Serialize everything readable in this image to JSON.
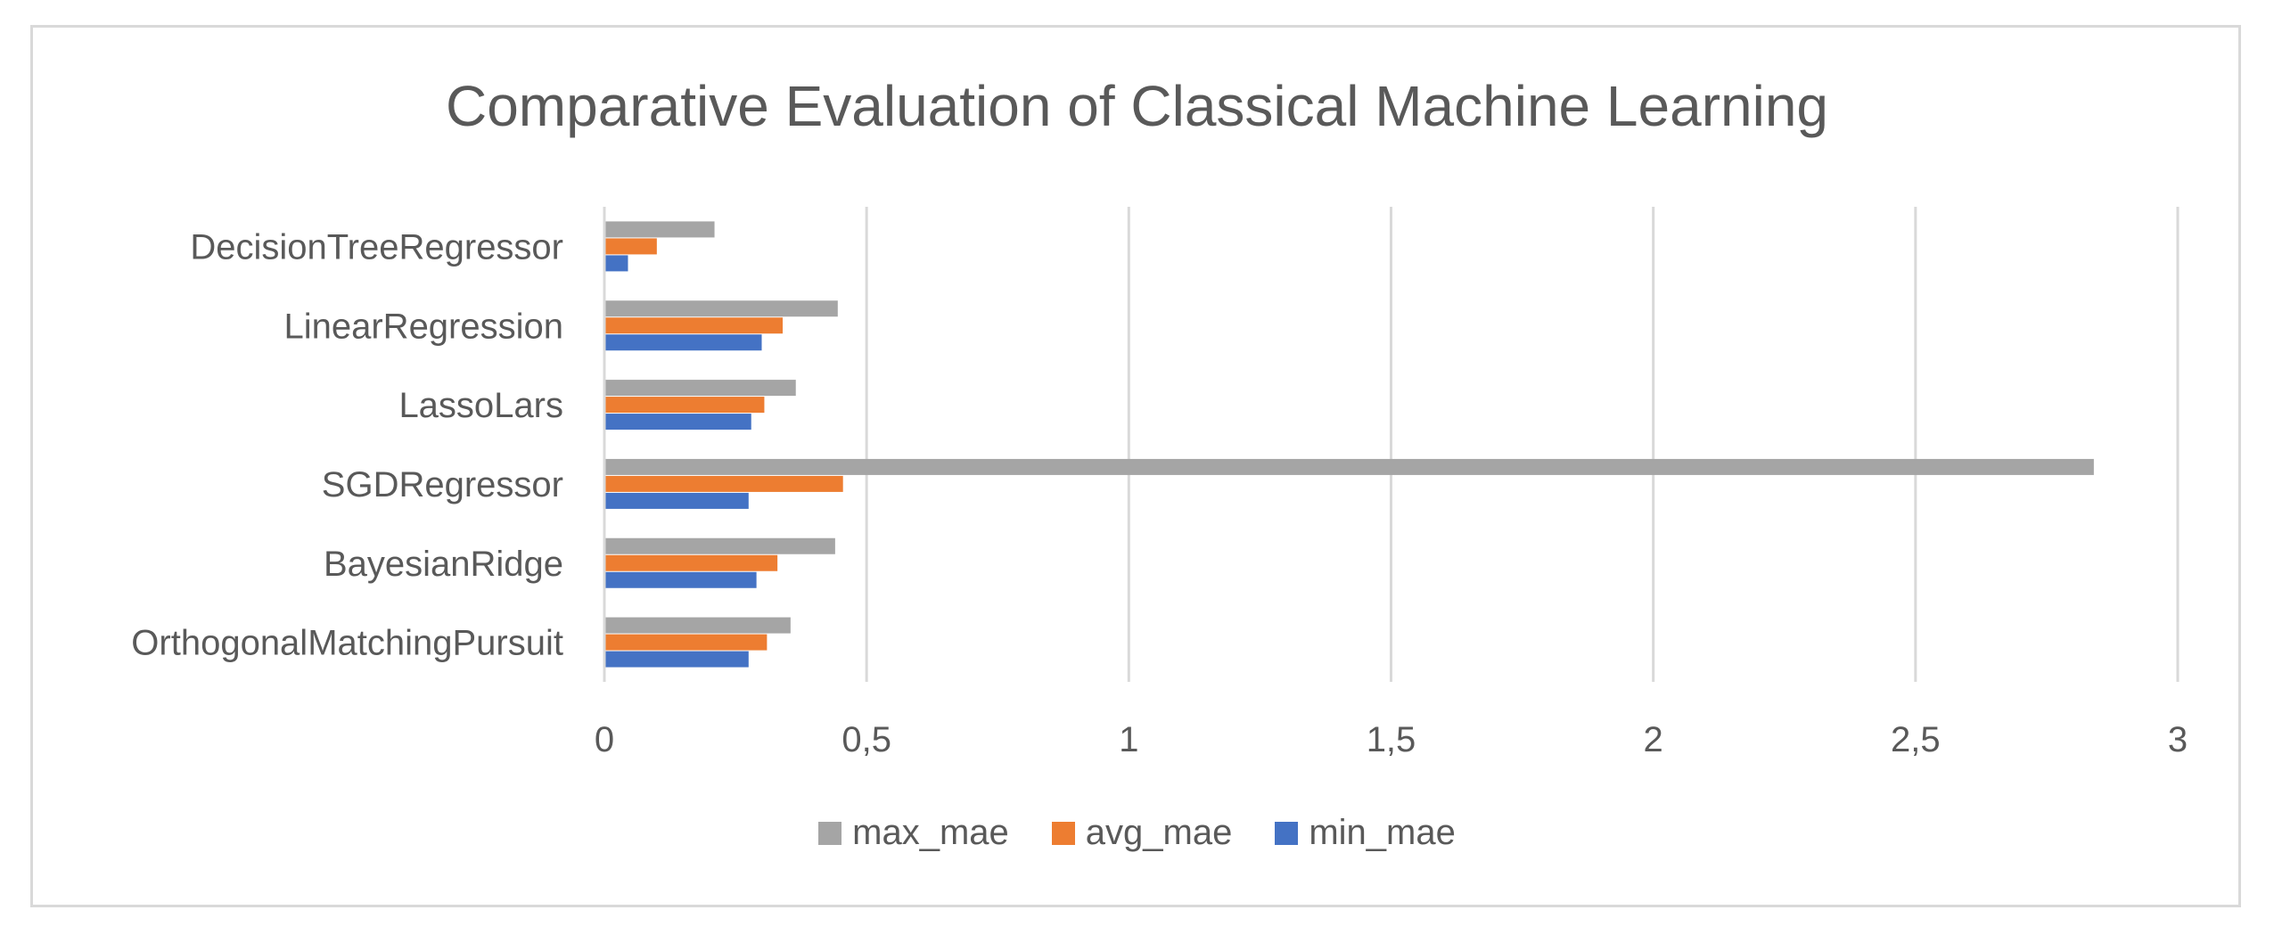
{
  "chart_data": {
    "type": "bar",
    "orientation": "horizontal",
    "title": "Comparative Evaluation of Classical Machine Learning",
    "categories": [
      "DecisionTreeRegressor",
      "LinearRegression",
      "LassoLars",
      "SGDRegressor",
      "BayesianRidge",
      "OrthogonalMatchingPursuit"
    ],
    "series": [
      {
        "name": "max_mae",
        "color": "#a5a5a5",
        "values": [
          0.21,
          0.445,
          0.365,
          2.84,
          0.44,
          0.355
        ]
      },
      {
        "name": "avg_mae",
        "color": "#ed7d31",
        "values": [
          0.1,
          0.34,
          0.305,
          0.455,
          0.33,
          0.31
        ]
      },
      {
        "name": "min_mae",
        "color": "#4472c4",
        "values": [
          0.045,
          0.3,
          0.28,
          0.275,
          0.29,
          0.275
        ]
      }
    ],
    "xlim": [
      0,
      3
    ],
    "xticks": [
      0,
      0.5,
      1,
      1.5,
      2,
      2.5,
      3
    ],
    "xtick_labels": [
      "0",
      "0,5",
      "1",
      "1,5",
      "2",
      "2,5",
      "3"
    ],
    "grid": "vertical",
    "legend_position": "bottom",
    "legend_order": [
      "max_mae",
      "avg_mae",
      "min_mae"
    ]
  }
}
